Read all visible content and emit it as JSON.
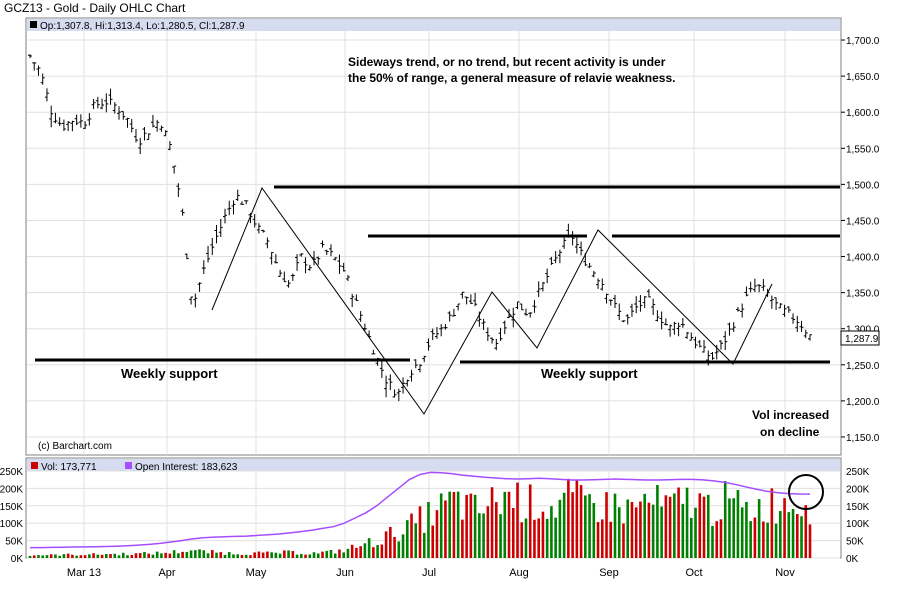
{
  "title": "GCZ13 - Gold - Daily OHLC Chart",
  "ohlc_label": "Op:1,307.8, Hi:1,313.4, Lo:1,280.5, Cl:1,287.9",
  "last_price_label": "1,287.9",
  "copyright": "(c) Barchart.com",
  "annotations": {
    "note_line1": "Sideways trend, or no trend, but recent activity is under",
    "note_line2": "the 50% of range, a general measure of relavie weakness.",
    "support_left": "Weekly support",
    "support_right": "Weekly support",
    "vol_line1": "Vol increased",
    "vol_line2": "on decline"
  },
  "volume_legend": {
    "vol": "Vol: 173,771",
    "oi": "Open Interest: 183,623"
  },
  "colors": {
    "up": "#008000",
    "down": "#cc0000",
    "open_interest": "#a64dff",
    "header_band": "#d6dcef",
    "grid": "#c8c8c8",
    "price_bar": "#000000"
  },
  "chart_data": {
    "type": "ohlc",
    "x_tick_labels": [
      "Mar 13",
      "Apr",
      "May",
      "Jun",
      "Jul",
      "Aug",
      "Sep",
      "Oct",
      "Nov"
    ],
    "price_axis": {
      "ylim": [
        1125,
        1712.5
      ],
      "ticks": [
        "1,150.0",
        "1,200.0",
        "1,250.0",
        "1,300.0",
        "1,350.0",
        "1,400.0",
        "1,450.0",
        "1,500.0",
        "1,550.0",
        "1,600.0",
        "1,650.0",
        "1,700.0"
      ]
    },
    "volume_axis": {
      "ylim": [
        0,
        250000
      ],
      "ticks": [
        "0K",
        "50K",
        "100K",
        "150K",
        "200K",
        "250K"
      ]
    },
    "price_path": [
      [
        1678,
        1655,
        1600,
        1580,
        1590,
        1585,
        1610,
        1615,
        1608,
        1590,
        1560,
        1575,
        1590,
        1550,
        1470,
        1330,
        1380,
        1420,
        1455,
        1485,
        1470,
        1440,
        1420,
        1380,
        1360,
        1400,
        1385,
        1410,
        1400,
        1380,
        1340,
        1300,
        1260,
        1225,
        1210,
        1240,
        1255,
        1285,
        1300,
        1320,
        1350,
        1330,
        1300,
        1280,
        1310,
        1335,
        1320,
        1350,
        1380,
        1410,
        1430,
        1400,
        1380,
        1360,
        1330,
        1310,
        1330,
        1340,
        1320,
        1300,
        1310,
        1290,
        1270,
        1260,
        1280,
        1310,
        1340,
        1360,
        1350,
        1330,
        1320,
        1310,
        1290
      ]
    ],
    "support_levels": [
      1258
    ],
    "resistance_levels": [
      1490,
      1425
    ],
    "trend_line_points": [
      [
        1323,
        1490,
        1185,
        1348,
        1272,
        1432,
        1253,
        1362
      ]
    ],
    "volume_series": [
      {
        "name": "Vol",
        "values": [
          8000,
          10000,
          9000,
          11000,
          10000,
          12000,
          11000,
          13000,
          12000,
          14000,
          13000,
          15000,
          16000,
          18000,
          22000,
          25000,
          20000,
          18000,
          16000,
          15000,
          14000,
          16000,
          15000,
          17000,
          18000,
          16000,
          15000,
          17000,
          20000,
          25000,
          35000,
          45000,
          55000,
          70000,
          85000,
          100000,
          120000,
          140000,
          160000,
          180000,
          170000,
          150000,
          160000,
          180000,
          200000,
          190000,
          170000,
          180000,
          160000,
          175000,
          190000,
          170000,
          180000,
          160000,
          170000,
          150000,
          165000,
          180000,
          170000,
          160000,
          175000,
          190000,
          170000,
          160000,
          180000,
          170000,
          150000,
          160000,
          170000,
          175000,
          180000,
          185000,
          173771
        ]
      },
      {
        "name": "Open Interest",
        "values": [
          30000,
          30000,
          30500,
          31000,
          31500,
          32000,
          32500,
          33000,
          34000,
          35000,
          37000,
          39000,
          42000,
          46000,
          50000,
          55000,
          58000,
          60000,
          61000,
          62000,
          63000,
          65000,
          67000,
          69000,
          72000,
          76000,
          80000,
          85000,
          90000,
          100000,
          115000,
          130000,
          150000,
          175000,
          200000,
          225000,
          240000,
          246000,
          245000,
          242000,
          238000,
          235000,
          232000,
          230000,
          228000,
          227000,
          228000,
          229000,
          228000,
          226000,
          224000,
          224000,
          225000,
          226000,
          227000,
          226000,
          225000,
          224000,
          224000,
          225000,
          226000,
          226000,
          225000,
          222000,
          218000,
          212000,
          205000,
          198000,
          192000,
          188000,
          185000,
          184000,
          183623
        ]
      }
    ]
  }
}
